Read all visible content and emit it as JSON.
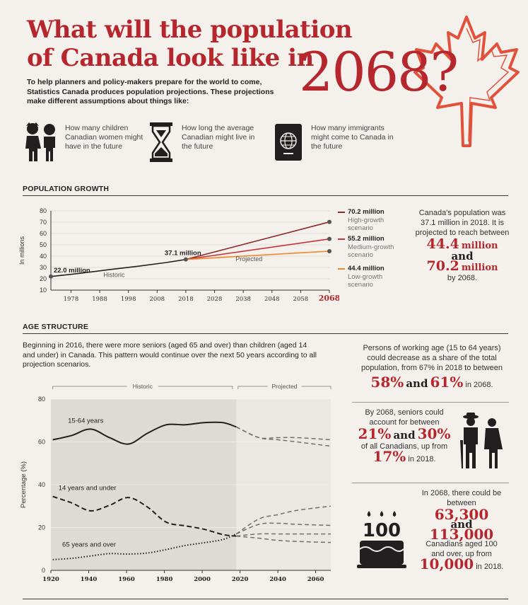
{
  "header": {
    "title_line1": "What will the population",
    "title_line2": "of Canada look like in",
    "title_year": "2068?",
    "intro": "To help planners and policy-makers prepare for the world to come, Statistics Canada produces population projections. These projections make different assumptions about things like:"
  },
  "assumptions": [
    {
      "icon": "children-icon",
      "text": "How many children Canadian women might have in the future"
    },
    {
      "icon": "hourglass-icon",
      "text": "How long the average Canadian might live in the future"
    },
    {
      "icon": "passport-icon",
      "text": "How many immigrants might come to Canada in the future"
    }
  ],
  "population_growth": {
    "heading": "POPULATION GROWTH",
    "side_text1": "Canada's population was 37.1 million in 2018. It is projected to reach between",
    "side_low": "44.4",
    "side_low_unit": "million",
    "side_and": "and",
    "side_high": "70.2",
    "side_high_unit": "million",
    "side_by": "by 2068.",
    "legend": [
      {
        "value": "70.2 million",
        "label": "High-growth scenario",
        "color": "#8a2a2a"
      },
      {
        "value": "55.2 million",
        "label": "Medium-growth scenario",
        "color": "#c8323a"
      },
      {
        "value": "44.4 million",
        "label": "Low-growth scenario",
        "color": "#f0892e"
      }
    ]
  },
  "age_structure": {
    "heading": "AGE STRUCTURE",
    "intro": "Beginning in 2016, there were more seniors (aged 65 and over) than children (aged 14 and under) in Canada. This pattern would continue over the next 50 years according to all projection scenarios.",
    "side1_text": "Persons of working age (15 to 64 years) could decrease as a share of the total population, from 67% in 2018 to between",
    "side1_a": "58%",
    "side1_and": "and",
    "side1_b": "61%",
    "side1_tail": "in 2068.",
    "side2_text": "By 2068, seniors could account for between",
    "side2_a": "21%",
    "side2_and": "and",
    "side2_b": "30%",
    "side2_mid": "of all Canadians, up from",
    "side2_c": "17%",
    "side2_tail": "in 2018.",
    "side3_text": "In 2068, there could be between",
    "side3_a": "63,300",
    "side3_and": "and",
    "side3_b": "113,000",
    "side3_mid": "Canadians aged 100 and over, up from",
    "side3_c": "10,000",
    "side3_tail": "in 2018.",
    "cake_label": "100"
  },
  "chart_data": [
    {
      "type": "line",
      "ylabel": "In millions",
      "ylim": [
        10,
        80
      ],
      "xlim": [
        1971,
        2068
      ],
      "yticks": [
        10,
        20,
        30,
        40,
        50,
        60,
        70,
        80
      ],
      "xticks": [
        1978,
        1988,
        1998,
        2008,
        2018,
        2028,
        2038,
        2048,
        2058,
        2068
      ],
      "region_labels": {
        "historic": "Historic",
        "projected": "Projected"
      },
      "annotations": [
        {
          "x": 1971,
          "y": 22.0,
          "text": "22.0 million"
        },
        {
          "x": 2018,
          "y": 37.1,
          "text": "37.1 million"
        }
      ],
      "series": [
        {
          "name": "Historic",
          "x": [
            1971,
            1981,
            1991,
            2001,
            2011,
            2018
          ],
          "values": [
            22.0,
            24.8,
            28.0,
            31.0,
            34.3,
            37.1
          ],
          "color": "#231f20"
        },
        {
          "name": "High-growth scenario",
          "x": [
            2018,
            2068
          ],
          "values": [
            37.1,
            70.2
          ],
          "color": "#8a2a2a"
        },
        {
          "name": "Medium-growth scenario",
          "x": [
            2018,
            2068
          ],
          "values": [
            37.1,
            55.2
          ],
          "color": "#c8323a"
        },
        {
          "name": "Low-growth scenario",
          "x": [
            2018,
            2068
          ],
          "values": [
            37.1,
            44.4
          ],
          "color": "#f0892e"
        }
      ]
    },
    {
      "type": "line",
      "ylabel": "Percentage (%)",
      "ylim": [
        0,
        80
      ],
      "xlim": [
        1921,
        2068
      ],
      "yticks": [
        0,
        20,
        40,
        60,
        80
      ],
      "xticks": [
        1920,
        1940,
        1960,
        1980,
        2000,
        2020,
        2040,
        2060
      ],
      "region_labels": {
        "historic": "Historic",
        "projected": "Projected"
      },
      "series": [
        {
          "name": "15-64 years",
          "style": "solid",
          "x": [
            1921,
            1931,
            1941,
            1951,
            1961,
            1971,
            1981,
            1991,
            2001,
            2011,
            2018
          ],
          "values": [
            61,
            63,
            66,
            62,
            59,
            64,
            68,
            68,
            69,
            69,
            67
          ]
        },
        {
          "name": "15-64 years projected high",
          "style": "dashed",
          "x": [
            2018,
            2030,
            2040,
            2050,
            2068
          ],
          "values": [
            67,
            62,
            62,
            62,
            61
          ]
        },
        {
          "name": "15-64 years projected low",
          "style": "dashed",
          "x": [
            2018,
            2030,
            2040,
            2050,
            2068
          ],
          "values": [
            67,
            62,
            61,
            60,
            58
          ]
        },
        {
          "name": "14 years and under",
          "style": "dashed",
          "x": [
            1921,
            1931,
            1941,
            1951,
            1961,
            1971,
            1981,
            1991,
            2001,
            2011,
            2018
          ],
          "values": [
            34.5,
            31.5,
            27.8,
            30.4,
            34.0,
            29.6,
            22.5,
            20.8,
            19.2,
            16.7,
            16.0
          ]
        },
        {
          "name": "14 years and under projected high",
          "style": "dashed",
          "x": [
            2018,
            2030,
            2040,
            2050,
            2068
          ],
          "values": [
            16.0,
            17.0,
            17.0,
            17.0,
            17.0
          ]
        },
        {
          "name": "14 years and under projected low",
          "style": "dashed",
          "x": [
            2018,
            2030,
            2040,
            2050,
            2068
          ],
          "values": [
            16.0,
            15.0,
            14.0,
            13.5,
            13.0
          ]
        },
        {
          "name": "65 years and over",
          "style": "dotted",
          "x": [
            1921,
            1931,
            1941,
            1951,
            1961,
            1971,
            1981,
            1991,
            2001,
            2011,
            2018
          ],
          "values": [
            5.0,
            5.6,
            6.7,
            7.8,
            7.6,
            8.1,
            9.7,
            11.6,
            12.9,
            14.4,
            17.0
          ]
        },
        {
          "name": "65 years and over projected high",
          "style": "dashed",
          "x": [
            2018,
            2030,
            2040,
            2050,
            2068
          ],
          "values": [
            17.0,
            24.0,
            26.0,
            28.0,
            30.0
          ]
        },
        {
          "name": "65 years and over projected low",
          "style": "dashed",
          "x": [
            2018,
            2030,
            2040,
            2050,
            2068
          ],
          "values": [
            17.0,
            21.5,
            22.0,
            21.5,
            21.0
          ]
        }
      ],
      "series_labels": [
        {
          "series": "15-64 years",
          "text": "15-64 years"
        },
        {
          "series": "14 years and under",
          "text": "14 years and under"
        },
        {
          "series": "65 years and over",
          "text": "65 years and over"
        }
      ]
    }
  ]
}
